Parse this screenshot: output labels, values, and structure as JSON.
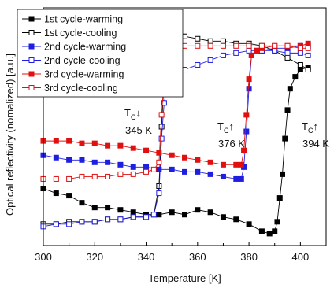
{
  "chart_data": {
    "type": "scatter",
    "xlabel": "Temperature [K]",
    "ylabel": "Optical reflectivity (nomalized) [a.u.]",
    "xlim": [
      300,
      410
    ],
    "ylim": [
      0,
      1
    ],
    "xticks": [
      300,
      320,
      340,
      360,
      380,
      400
    ],
    "grid": false,
    "legend_position": "top-left",
    "annotations": [
      {
        "sym": "T",
        "sub": "C",
        "arrow": "↓",
        "value": "345 K"
      },
      {
        "sym": "T",
        "sub": "C",
        "arrow": "↑",
        "value": "376 K"
      },
      {
        "sym": "T",
        "sub": "C",
        "arrow": "↑",
        "value": "394 K"
      }
    ],
    "series": [
      {
        "name": "1st cycle-warming",
        "color": "#000000",
        "marker": "filled-square",
        "x": [
          300,
          305,
          310,
          315,
          320,
          325,
          330,
          335,
          340,
          345,
          350,
          355,
          360,
          365,
          370,
          375,
          380,
          385,
          388,
          390,
          391,
          392,
          393,
          394,
          395,
          396,
          398,
          400,
          403
        ],
        "y": [
          0.24,
          0.22,
          0.21,
          0.18,
          0.16,
          0.16,
          0.15,
          0.14,
          0.13,
          0.13,
          0.14,
          0.13,
          0.15,
          0.14,
          0.12,
          0.11,
          0.09,
          0.06,
          0.05,
          0.06,
          0.1,
          0.2,
          0.3,
          0.45,
          0.57,
          0.66,
          0.71,
          0.74,
          0.75
        ]
      },
      {
        "name": "1st cycle-cooling",
        "color": "#000000",
        "marker": "open-square",
        "x": [
          403,
          400,
          395,
          390,
          385,
          380,
          375,
          370,
          365,
          360,
          355,
          352,
          350,
          348,
          347,
          346,
          345,
          343,
          340,
          335,
          330,
          325,
          320,
          315,
          310,
          305,
          300
        ],
        "y": [
          0.74,
          0.76,
          0.79,
          0.82,
          0.84,
          0.85,
          0.85,
          0.86,
          0.86,
          0.87,
          0.88,
          0.88,
          0.86,
          0.82,
          0.7,
          0.5,
          0.25,
          0.13,
          0.12,
          0.12,
          0.11,
          0.11,
          0.1,
          0.1,
          0.1,
          0.09,
          0.09
        ]
      },
      {
        "name": "2nd cycle-warming",
        "color": "#1f1fe0",
        "marker": "filled-square",
        "x": [
          300,
          305,
          310,
          315,
          320,
          325,
          330,
          335,
          340,
          345,
          350,
          355,
          360,
          365,
          370,
          375,
          377,
          378,
          379,
          380,
          381,
          383,
          385,
          390,
          395,
          400,
          403
        ],
        "y": [
          0.38,
          0.37,
          0.36,
          0.36,
          0.35,
          0.35,
          0.34,
          0.33,
          0.33,
          0.32,
          0.32,
          0.31,
          0.31,
          0.3,
          0.29,
          0.28,
          0.28,
          0.33,
          0.48,
          0.66,
          0.8,
          0.82,
          0.82,
          0.83,
          0.83,
          0.84,
          0.84
        ]
      },
      {
        "name": "2nd cycle-cooling",
        "color": "#1f1fe0",
        "marker": "open-square",
        "x": [
          403,
          400,
          395,
          390,
          385,
          380,
          375,
          370,
          365,
          360,
          355,
          350,
          348,
          347,
          346,
          345,
          343,
          340,
          335,
          330,
          325,
          320,
          315,
          310,
          305,
          300
        ],
        "y": [
          0.8,
          0.81,
          0.81,
          0.82,
          0.82,
          0.82,
          0.81,
          0.8,
          0.78,
          0.76,
          0.74,
          0.7,
          0.66,
          0.6,
          0.45,
          0.22,
          0.13,
          0.12,
          0.12,
          0.11,
          0.11,
          0.1,
          0.1,
          0.09,
          0.09,
          0.08
        ]
      },
      {
        "name": "3rd cycle-warming",
        "color": "#e01010",
        "marker": "filled-square",
        "x": [
          300,
          305,
          310,
          315,
          320,
          325,
          330,
          335,
          340,
          345,
          350,
          355,
          360,
          365,
          370,
          375,
          377,
          378,
          379,
          380,
          381,
          383,
          385,
          390,
          395,
          400,
          403
        ],
        "y": [
          0.44,
          0.44,
          0.44,
          0.43,
          0.43,
          0.42,
          0.42,
          0.41,
          0.4,
          0.39,
          0.38,
          0.37,
          0.36,
          0.35,
          0.34,
          0.34,
          0.34,
          0.4,
          0.55,
          0.7,
          0.8,
          0.82,
          0.83,
          0.84,
          0.84,
          0.84,
          0.85
        ]
      },
      {
        "name": "3rd cycle-cooling",
        "color": "#e01010",
        "marker": "open-square",
        "x": [
          403,
          400,
          395,
          390,
          385,
          380,
          375,
          370,
          365,
          360,
          355,
          350,
          348,
          347,
          346,
          345,
          343,
          340,
          335,
          330,
          325,
          320,
          315,
          310,
          305,
          300
        ],
        "y": [
          0.83,
          0.83,
          0.84,
          0.84,
          0.84,
          0.84,
          0.84,
          0.84,
          0.84,
          0.84,
          0.84,
          0.82,
          0.78,
          0.7,
          0.55,
          0.35,
          0.32,
          0.31,
          0.3,
          0.3,
          0.29,
          0.29,
          0.29,
          0.28,
          0.28,
          0.28
        ]
      }
    ]
  }
}
